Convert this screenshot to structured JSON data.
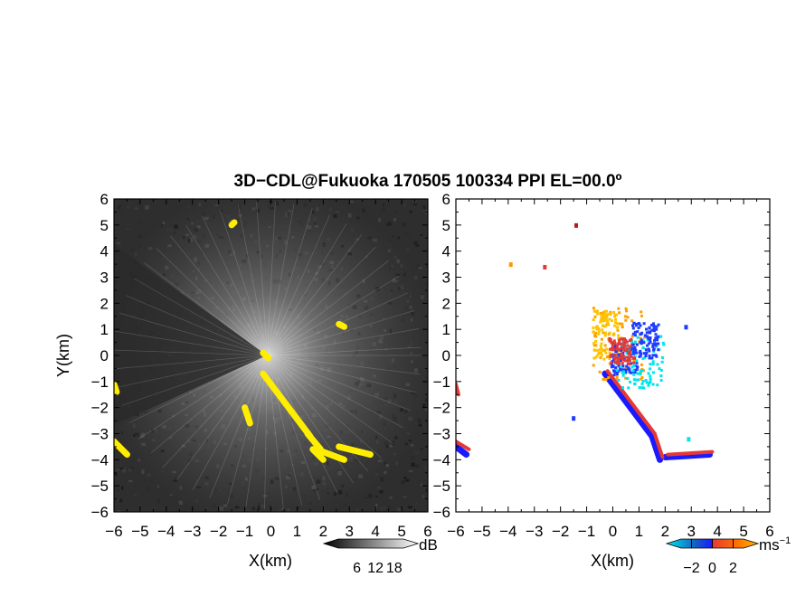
{
  "title": "3D−CDL@Fukuoka 170505 100334 PPI EL=00.0º",
  "chart_data": [
    {
      "type": "heatmap",
      "panel": "left",
      "title": "",
      "xlabel": "X(km)",
      "ylabel": "Y(km)",
      "xlim": [
        -6,
        6
      ],
      "ylim": [
        -6,
        6
      ],
      "xticks": [
        "−6",
        "−5",
        "−4",
        "−3",
        "−2",
        "−1",
        "0",
        "1",
        "2",
        "3",
        "4",
        "5",
        "6"
      ],
      "yticks": [
        "6",
        "5",
        "4",
        "3",
        "2",
        "1",
        "0",
        "−1",
        "−2",
        "−3",
        "−4",
        "−5",
        "−6"
      ],
      "background_color": "#2e2e2e",
      "highlight_color": "#ffee00",
      "colorbar": {
        "unit": "dB",
        "tick_labels": [
          "6",
          "12",
          "18"
        ],
        "tick_values": [
          6,
          12,
          18
        ],
        "range": [
          0,
          21
        ]
      },
      "highlight_regions": [
        {
          "x": -0.3,
          "y": -0.7,
          "x2": 1.5,
          "y2": -3.1
        },
        {
          "x": 1.4,
          "y": -3.0,
          "x2": 1.9,
          "y2": -3.6
        },
        {
          "x": 1.6,
          "y": -3.6,
          "x2": 2.0,
          "y2": -4.0
        },
        {
          "x": 2.0,
          "y": -3.7,
          "x2": 2.8,
          "y2": -4.0
        },
        {
          "x": 2.6,
          "y": -3.5,
          "x2": 3.8,
          "y2": -3.8
        },
        {
          "x": -6.0,
          "y": -3.3,
          "x2": -5.5,
          "y2": -3.8
        },
        {
          "x": -6.0,
          "y": -1.1,
          "x2": -5.9,
          "y2": -1.4
        },
        {
          "x": -1.5,
          "y": 5.0,
          "x2": -1.4,
          "y2": 5.1
        },
        {
          "x": 2.6,
          "y": 1.2,
          "x2": 2.8,
          "y2": 1.1
        },
        {
          "x": -0.3,
          "y": 0.1,
          "x2": -0.1,
          "y2": -0.1
        },
        {
          "x": -1.0,
          "y": -2.0,
          "x2": -0.8,
          "y2": -2.6
        }
      ]
    },
    {
      "type": "scatter",
      "panel": "right",
      "title": "",
      "xlabel": "X(km)",
      "ylabel": "",
      "xlim": [
        -6,
        6
      ],
      "ylim": [
        -6,
        6
      ],
      "xticks": [
        "−6",
        "−5",
        "−4",
        "−3",
        "−2",
        "−1",
        "0",
        "1",
        "2",
        "3",
        "4",
        "5",
        "6"
      ],
      "yticks": [
        "6",
        "5",
        "4",
        "3",
        "2",
        "1",
        "0",
        "−1",
        "−2",
        "−3",
        "−4",
        "−5",
        "−6"
      ],
      "colorbar": {
        "unit": "ms",
        "unit_superscript": "−1",
        "tick_labels": [
          "−2",
          "0",
          "2"
        ],
        "tick_values": [
          -2,
          0,
          2
        ],
        "range": [
          -3,
          3
        ],
        "colors": [
          "#00e5ee",
          "#1565c0",
          "#1a1aff",
          "#e53935",
          "#ff6d00",
          "#ffb300"
        ]
      },
      "clusters": [
        {
          "x": 0.2,
          "y": 0.5,
          "dx": 1.0,
          "dy": 1.4,
          "color": "#ffa000"
        },
        {
          "x": -0.3,
          "y": 0.8,
          "dx": 0.5,
          "dy": 1.0,
          "color": "#ffc400"
        },
        {
          "x": 0.4,
          "y": -0.1,
          "dx": 0.5,
          "dy": 0.6,
          "color": "#1e3cff"
        },
        {
          "x": 1.0,
          "y": -0.2,
          "dx": 0.9,
          "dy": 1.0,
          "color": "#00e5ee"
        },
        {
          "x": 0.3,
          "y": 0.2,
          "dx": 0.5,
          "dy": 0.5,
          "color": "#e53935"
        },
        {
          "x": 1.2,
          "y": 0.6,
          "dx": 0.5,
          "dy": 0.7,
          "color": "#1e3cff"
        }
      ],
      "streak_blue": [
        {
          "x": -0.3,
          "y": -0.7,
          "x2": 1.5,
          "y2": -3.1
        },
        {
          "x": 1.5,
          "y": -3.1,
          "x2": 1.8,
          "y2": -4.0
        },
        {
          "x": 2.0,
          "y": -3.9,
          "x2": 3.7,
          "y2": -3.8
        },
        {
          "x": -6.0,
          "y": -3.5,
          "x2": -5.6,
          "y2": -3.8
        }
      ],
      "streak_red": [
        {
          "x": -0.2,
          "y": -0.6,
          "x2": 1.6,
          "y2": -3.0
        },
        {
          "x": 1.6,
          "y": -3.0,
          "x2": 1.9,
          "y2": -3.9
        },
        {
          "x": 2.1,
          "y": -3.8,
          "x2": 3.8,
          "y2": -3.7
        },
        {
          "x": -6.0,
          "y": -3.3,
          "x2": -5.5,
          "y2": -3.6
        },
        {
          "x": -6.0,
          "y": -1.1,
          "x2": -5.9,
          "y2": -1.5
        }
      ],
      "isolated": [
        {
          "x": -1.4,
          "y": 5.0,
          "color": "#b71c1c"
        },
        {
          "x": -3.9,
          "y": 3.5,
          "color": "#ff9800"
        },
        {
          "x": -2.6,
          "y": 3.4,
          "color": "#e53935"
        },
        {
          "x": -1.5,
          "y": -2.4,
          "color": "#1e3cff"
        },
        {
          "x": 2.9,
          "y": -3.2,
          "color": "#00e5ee"
        },
        {
          "x": 2.8,
          "y": 1.1,
          "color": "#1e3cff"
        }
      ]
    }
  ]
}
